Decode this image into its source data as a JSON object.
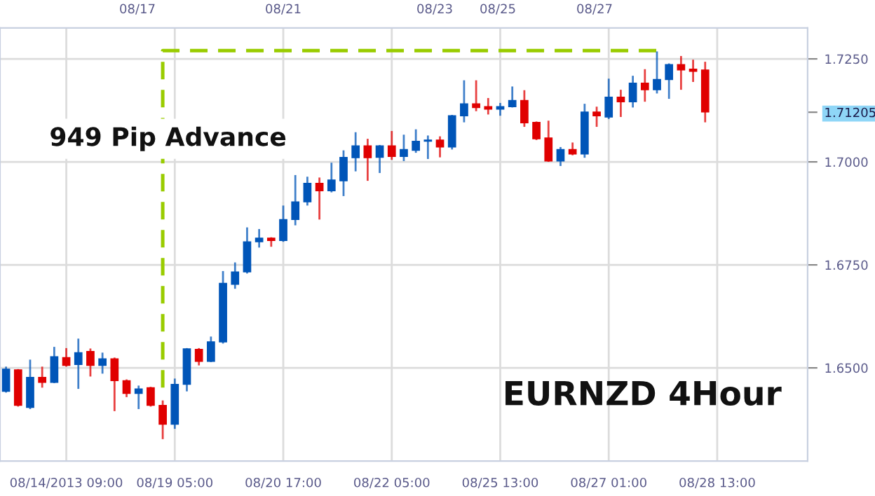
{
  "chart_data": {
    "type": "candlestick",
    "categories": [
      null,
      null,
      null,
      null,
      null,
      "08/14/2013 09:00",
      null,
      null,
      null,
      null,
      null,
      null,
      null,
      null,
      "08/19 05:00",
      null,
      null,
      null,
      null,
      null,
      null,
      null,
      null,
      "08/20 17:00",
      null,
      null,
      null,
      null,
      null,
      null,
      null,
      null,
      "08/22 05:00",
      null,
      null,
      null,
      null,
      null,
      null,
      null,
      null,
      "08/25 13:00",
      null,
      null,
      null,
      null,
      null,
      null,
      null,
      null,
      "08/27 01:00",
      null,
      null,
      null,
      null,
      null,
      null,
      null,
      null,
      "08/28 13:00",
      null,
      null,
      null,
      null,
      null,
      null,
      null
    ],
    "ohlc": [
      [
        1.6443,
        1.6503,
        1.644,
        1.6497
      ],
      [
        1.6495,
        1.6497,
        1.6406,
        1.6409
      ],
      [
        1.6404,
        1.652,
        1.64,
        1.6477
      ],
      [
        1.6477,
        1.6503,
        1.6452,
        1.6465
      ],
      [
        1.6465,
        1.6551,
        1.6463,
        1.6527
      ],
      [
        1.6525,
        1.6548,
        1.6503,
        1.6506
      ],
      [
        1.6508,
        1.6571,
        1.6449,
        1.6537
      ],
      [
        1.654,
        1.6547,
        1.6479,
        1.6506
      ],
      [
        1.6506,
        1.6537,
        1.6486,
        1.6522
      ],
      [
        1.6522,
        1.6525,
        1.6395,
        1.6469
      ],
      [
        1.6469,
        1.6472,
        1.6429,
        1.6438
      ],
      [
        1.6438,
        1.6457,
        1.64,
        1.6449
      ],
      [
        1.6452,
        1.6454,
        1.6406,
        1.6409
      ],
      [
        1.6409,
        1.6421,
        1.6327,
        1.6363
      ],
      [
        1.6363,
        1.6474,
        1.6352,
        1.646
      ],
      [
        1.646,
        1.6548,
        1.6443,
        1.6546
      ],
      [
        1.6545,
        1.6548,
        1.6506,
        1.6516
      ],
      [
        1.6516,
        1.6576,
        1.6514,
        1.6563
      ],
      [
        1.6563,
        1.6735,
        1.6559,
        1.6705
      ],
      [
        1.6703,
        1.6756,
        1.6692,
        1.6733
      ],
      [
        1.6733,
        1.6841,
        1.6729,
        1.6806
      ],
      [
        1.6806,
        1.6837,
        1.6792,
        1.6815
      ],
      [
        1.6815,
        1.6817,
        1.6794,
        1.6809
      ],
      [
        1.6809,
        1.6894,
        1.6806,
        1.686
      ],
      [
        1.686,
        1.6968,
        1.6846,
        1.6903
      ],
      [
        1.6903,
        1.6964,
        1.6894,
        1.6948
      ],
      [
        1.6948,
        1.6962,
        1.686,
        1.693
      ],
      [
        1.693,
        1.6998,
        1.6926,
        1.6956
      ],
      [
        1.6954,
        1.7028,
        1.6917,
        1.7011
      ],
      [
        1.701,
        1.7072,
        1.6977,
        1.7039
      ],
      [
        1.7039,
        1.7056,
        1.6954,
        1.701
      ],
      [
        1.7011,
        1.7041,
        1.6973,
        1.7039
      ],
      [
        1.7039,
        1.7075,
        1.7005,
        1.7013
      ],
      [
        1.7013,
        1.7066,
        1.7002,
        1.703
      ],
      [
        1.7028,
        1.7079,
        1.7022,
        1.705
      ],
      [
        1.705,
        1.7064,
        1.7007,
        1.7053
      ],
      [
        1.7053,
        1.7062,
        1.7011,
        1.7036
      ],
      [
        1.7036,
        1.7114,
        1.703,
        1.7112
      ],
      [
        1.7112,
        1.7198,
        1.7096,
        1.7141
      ],
      [
        1.7141,
        1.7198,
        1.7123,
        1.7132
      ],
      [
        1.7134,
        1.7155,
        1.7115,
        1.7128
      ],
      [
        1.7128,
        1.7143,
        1.7112,
        1.7134
      ],
      [
        1.7134,
        1.7183,
        1.7132,
        1.7149
      ],
      [
        1.7149,
        1.7174,
        1.7085,
        1.7095
      ],
      [
        1.7096,
        1.7098,
        1.7053,
        1.7056
      ],
      [
        1.7058,
        1.71,
        1.7,
        1.7002
      ],
      [
        1.7002,
        1.7036,
        1.699,
        1.703
      ],
      [
        1.703,
        1.7047,
        1.7016,
        1.7019
      ],
      [
        1.7019,
        1.7141,
        1.701,
        1.7121
      ],
      [
        1.7121,
        1.7134,
        1.7085,
        1.7112
      ],
      [
        1.7109,
        1.7202,
        1.7104,
        1.7157
      ],
      [
        1.7157,
        1.7175,
        1.7109,
        1.7146
      ],
      [
        1.7146,
        1.7209,
        1.7132,
        1.7191
      ],
      [
        1.7191,
        1.7225,
        1.7146,
        1.7175
      ],
      [
        1.7175,
        1.7268,
        1.7166,
        1.72
      ],
      [
        1.72,
        1.7239,
        1.7153,
        1.7236
      ],
      [
        1.7236,
        1.7257,
        1.7175,
        1.7223
      ],
      [
        1.7225,
        1.7248,
        1.7194,
        1.722
      ],
      [
        1.7223,
        1.7243,
        1.7096,
        1.7121
      ],
      null,
      null,
      null,
      null,
      null,
      null,
      null,
      null
    ],
    "colors": [
      "#0055b8",
      "#e00000",
      "#0055b8",
      "#e00000",
      "#0055b8",
      "#e00000",
      "#0055b8",
      "#e00000",
      "#0055b8",
      "#e00000",
      "#e00000",
      "#0055b8",
      "#e00000",
      "#e00000",
      "#0055b8",
      "#0055b8",
      "#e00000",
      "#0055b8",
      "#0055b8",
      "#0055b8",
      "#0055b8",
      "#0055b8",
      "#e00000",
      "#0055b8",
      "#0055b8",
      "#0055b8",
      "#e00000",
      "#0055b8",
      "#0055b8",
      "#0055b8",
      "#e00000",
      "#0055b8",
      "#e00000",
      "#0055b8",
      "#0055b8",
      "#0055b8",
      "#e00000",
      "#0055b8",
      "#0055b8",
      "#e00000",
      "#e00000",
      "#0055b8",
      "#0055b8",
      "#e00000",
      "#e00000",
      "#e00000",
      "#0055b8",
      "#e00000",
      "#0055b8",
      "#e00000",
      "#0055b8",
      "#e00000",
      "#0055b8",
      "#e00000",
      "#0055b8",
      "#0055b8",
      "#e00000",
      "#e00000",
      "#e00000",
      null,
      null,
      null,
      null,
      null,
      null,
      null,
      null
    ],
    "series": [
      {
        "type": "step",
        "color": "#99cc00",
        "line_style": "dashed",
        "values": [
          null,
          null,
          null,
          null,
          null,
          null,
          null,
          null,
          null,
          null,
          null,
          null,
          null,
          1.6452,
          1.727,
          1.727,
          1.727,
          1.727,
          1.727,
          1.727,
          1.727,
          1.727,
          1.727,
          1.727,
          1.727,
          1.727,
          1.727,
          1.727,
          1.727,
          1.727,
          1.727,
          1.727,
          1.727,
          1.727,
          1.727,
          1.727,
          1.727,
          1.727,
          1.727,
          1.727,
          1.727,
          1.727,
          1.727,
          1.727,
          1.727,
          1.727,
          1.727,
          1.727,
          1.727,
          1.727,
          1.727,
          1.727,
          1.727,
          1.727,
          1.727,
          null,
          null,
          null,
          null,
          null,
          null,
          null,
          null,
          null,
          null,
          null,
          null
        ]
      }
    ],
    "ylim": [
      1.6274,
      1.7325
    ],
    "yticks": [
      {
        "value": 1.65,
        "label": "1.6500"
      },
      {
        "value": 1.675,
        "label": "1.6750"
      },
      {
        "value": 1.7,
        "label": "1.7000"
      },
      {
        "value": 1.71205,
        "label": "1.71205"
      },
      {
        "value": 1.725,
        "label": "1.7250"
      }
    ],
    "grid": true,
    "annotations": [
      "949 Pip Advance",
      "EURNZD 4Hour",
      "08/17",
      "08/21",
      "08/23",
      "08/25",
      "08/27"
    ]
  }
}
